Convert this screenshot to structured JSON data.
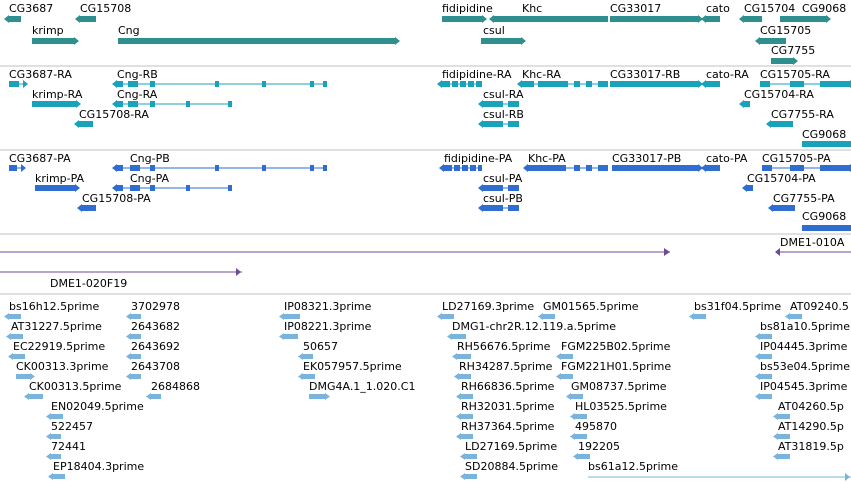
{
  "colors": {
    "genes": "#2f8e8e",
    "mrna_transcripts": "#19a3b8",
    "proteins": "#2f6ed0",
    "tiling_path": "#6e4a99",
    "ests": "#7ab3dc",
    "track_divider": "#c0c0c0",
    "label_text": "#000000"
  },
  "tracks": [
    {
      "name": "genes",
      "features": [
        {
          "label": "CG3687",
          "strand": "-"
        },
        {
          "label": "CG15708",
          "strand": "-"
        },
        {
          "label": "krimp",
          "strand": "+"
        },
        {
          "label": "Cng",
          "strand": "+"
        },
        {
          "label": "fidipidine",
          "strand": "+"
        },
        {
          "label": "Khc",
          "strand": "-"
        },
        {
          "label": "CG33017",
          "strand": "+"
        },
        {
          "label": "cato",
          "strand": "-"
        },
        {
          "label": "CG15704",
          "strand": "-"
        },
        {
          "label": "CG9068",
          "strand": "+"
        },
        {
          "label": "csul",
          "strand": "+"
        },
        {
          "label": "CG15705",
          "strand": "-"
        },
        {
          "label": "CG7755",
          "strand": "+"
        }
      ]
    },
    {
      "name": "mrna-transcripts",
      "features": [
        {
          "label": "CG3687-RA",
          "strand": "+"
        },
        {
          "label": "Cng-RB",
          "strand": "-"
        },
        {
          "label": "krimp-RA",
          "strand": "+"
        },
        {
          "label": "Cng-RA",
          "strand": "-"
        },
        {
          "label": "CG15708-RA",
          "strand": "-"
        },
        {
          "label": "fidipidine-RA",
          "strand": "-"
        },
        {
          "label": "Khc-RA",
          "strand": "-"
        },
        {
          "label": "CG33017-RB",
          "strand": "+"
        },
        {
          "label": "cato-RA",
          "strand": "-"
        },
        {
          "label": "CG15705-RA",
          "strand": "+"
        },
        {
          "label": "csul-RA",
          "strand": "-"
        },
        {
          "label": "CG15704-RA",
          "strand": "-"
        },
        {
          "label": "csul-RB",
          "strand": "-"
        },
        {
          "label": "CG7755-RA",
          "strand": "-"
        },
        {
          "label": "CG9068",
          "strand": "+"
        }
      ]
    },
    {
      "name": "proteins",
      "features": [
        {
          "label": "CG3687-PA",
          "strand": "+"
        },
        {
          "label": "Cng-PB",
          "strand": "-"
        },
        {
          "label": "krimp-PA",
          "strand": "+"
        },
        {
          "label": "Cng-PA",
          "strand": "-"
        },
        {
          "label": "CG15708-PA",
          "strand": "-"
        },
        {
          "label": "fidipidine-PA",
          "strand": "-"
        },
        {
          "label": "Khc-PA",
          "strand": "-"
        },
        {
          "label": "CG33017-PB",
          "strand": "+"
        },
        {
          "label": "cato-PA",
          "strand": "-"
        },
        {
          "label": "CG15705-PA",
          "strand": "+"
        },
        {
          "label": "csul-PA",
          "strand": "-"
        },
        {
          "label": "CG15704-PA",
          "strand": "-"
        },
        {
          "label": "csul-PB",
          "strand": "-"
        },
        {
          "label": "CG7755-PA",
          "strand": "-"
        },
        {
          "label": "CG9068",
          "strand": "+"
        }
      ]
    },
    {
      "name": "tiling-path",
      "features": [
        {
          "label": "DME1-010A",
          "strand": "-"
        },
        {
          "label": "DME1-020F19",
          "strand": "+"
        }
      ]
    },
    {
      "name": "ests",
      "features": [
        {
          "label": "bs16h12.5prime",
          "strand": "-"
        },
        {
          "label": "AT31227.5prime",
          "strand": "-"
        },
        {
          "label": "EC22919.5prime",
          "strand": "-"
        },
        {
          "label": "CK00313.3prime",
          "strand": "+"
        },
        {
          "label": "CK00313.5prime",
          "strand": "-"
        },
        {
          "label": "EN02049.5prime",
          "strand": "-"
        },
        {
          "label": "522457",
          "strand": "-"
        },
        {
          "label": "72441",
          "strand": "-"
        },
        {
          "label": "EP18404.3prime",
          "strand": "-"
        },
        {
          "label": "3702978",
          "strand": "-"
        },
        {
          "label": "2643682",
          "strand": "-"
        },
        {
          "label": "2643692",
          "strand": "-"
        },
        {
          "label": "2643708",
          "strand": "-"
        },
        {
          "label": "2684868",
          "strand": "-"
        },
        {
          "label": "IP08321.3prime",
          "strand": "-"
        },
        {
          "label": "IP08221.3prime",
          "strand": "-"
        },
        {
          "label": "50657",
          "strand": "-"
        },
        {
          "label": "EK057957.5prime",
          "strand": "-"
        },
        {
          "label": "DMG4A.1_1.020.C1",
          "strand": "+"
        },
        {
          "label": "LD27169.3prime",
          "strand": "-"
        },
        {
          "label": "DMG1-chr2R.12.119.a.5prime",
          "strand": "-"
        },
        {
          "label": "RH56676.5prime",
          "strand": "-"
        },
        {
          "label": "RH34287.5prime",
          "strand": "-"
        },
        {
          "label": "RH66836.5prime",
          "strand": "-"
        },
        {
          "label": "RH32031.5prime",
          "strand": "-"
        },
        {
          "label": "RH37364.5prime",
          "strand": "-"
        },
        {
          "label": "LD27169.5prime",
          "strand": "-"
        },
        {
          "label": "SD20884.5prime",
          "strand": "-"
        },
        {
          "label": "GM01565.5prime",
          "strand": "-"
        },
        {
          "label": "FGM225B02.5prime",
          "strand": "-"
        },
        {
          "label": "FGM221H01.5prime",
          "strand": "-"
        },
        {
          "label": "GM08737.5prime",
          "strand": "-"
        },
        {
          "label": "HL03525.5prime",
          "strand": "-"
        },
        {
          "label": "495870",
          "strand": "-"
        },
        {
          "label": "192205",
          "strand": "-"
        },
        {
          "label": "bs61a12.5prime",
          "strand": "+"
        },
        {
          "label": "bs31f04.5prime",
          "strand": "-"
        },
        {
          "label": "AT09240.5",
          "strand": "-"
        },
        {
          "label": "bs81a10.5prime",
          "strand": "-"
        },
        {
          "label": "IP04445.3prime",
          "strand": "-"
        },
        {
          "label": "bs53e04.5prime",
          "strand": "-"
        },
        {
          "label": "IP04545.3prime",
          "strand": "-"
        },
        {
          "label": "AT04260.5p",
          "strand": "-"
        },
        {
          "label": "AT14290.5p",
          "strand": "-"
        },
        {
          "label": "AT31819.5p",
          "strand": "-"
        }
      ]
    }
  ]
}
